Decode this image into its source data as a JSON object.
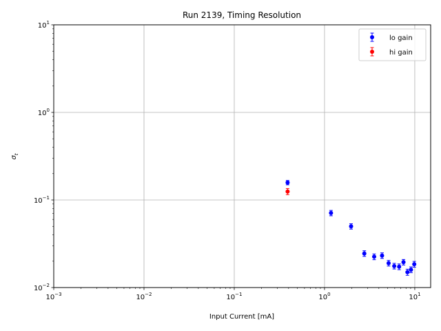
{
  "chart_data": {
    "type": "scatter",
    "title": "Run 2139, Timing Resolution",
    "xlabel": "Input Current [mA]",
    "ylabel": "σ",
    "ylabel_sub": "t",
    "xscale": "log",
    "yscale": "log",
    "xlim": [
      0.001,
      15
    ],
    "ylim": [
      0.01,
      10
    ],
    "grid": true,
    "legend_position": "top-right",
    "x_ticks": [
      {
        "value": 0.001,
        "base": "10",
        "exp": "−3"
      },
      {
        "value": 0.01,
        "base": "10",
        "exp": "−2"
      },
      {
        "value": 0.1,
        "base": "10",
        "exp": "−1"
      },
      {
        "value": 1,
        "base": "10",
        "exp": "0"
      },
      {
        "value": 10,
        "base": "10",
        "exp": "1"
      }
    ],
    "y_ticks": [
      {
        "value": 0.01,
        "base": "10",
        "exp": "−2"
      },
      {
        "value": 0.1,
        "base": "10",
        "exp": "−1"
      },
      {
        "value": 1,
        "base": "10",
        "exp": "0"
      },
      {
        "value": 10,
        "base": "10",
        "exp": "1"
      }
    ],
    "series": [
      {
        "name": "lo gain",
        "color": "#0000ff",
        "points": [
          {
            "x": 0.39,
            "y": 0.158,
            "err": 0.009
          },
          {
            "x": 1.18,
            "y": 0.071,
            "err": 0.005
          },
          {
            "x": 1.97,
            "y": 0.05,
            "err": 0.0035
          },
          {
            "x": 2.76,
            "y": 0.0245,
            "err": 0.0018
          },
          {
            "x": 3.55,
            "y": 0.0225,
            "err": 0.0017
          },
          {
            "x": 4.34,
            "y": 0.0232,
            "err": 0.0017
          },
          {
            "x": 5.13,
            "y": 0.019,
            "err": 0.0014
          },
          {
            "x": 5.92,
            "y": 0.0176,
            "err": 0.0013
          },
          {
            "x": 6.71,
            "y": 0.0173,
            "err": 0.0013
          },
          {
            "x": 7.5,
            "y": 0.0195,
            "err": 0.0014
          },
          {
            "x": 8.29,
            "y": 0.015,
            "err": 0.0012
          },
          {
            "x": 9.08,
            "y": 0.016,
            "err": 0.0012
          },
          {
            "x": 9.87,
            "y": 0.0185,
            "err": 0.0014
          }
        ]
      },
      {
        "name": "hi gain",
        "color": "#ff0000",
        "points": [
          {
            "x": 0.39,
            "y": 0.125,
            "err": 0.01
          }
        ]
      }
    ]
  }
}
